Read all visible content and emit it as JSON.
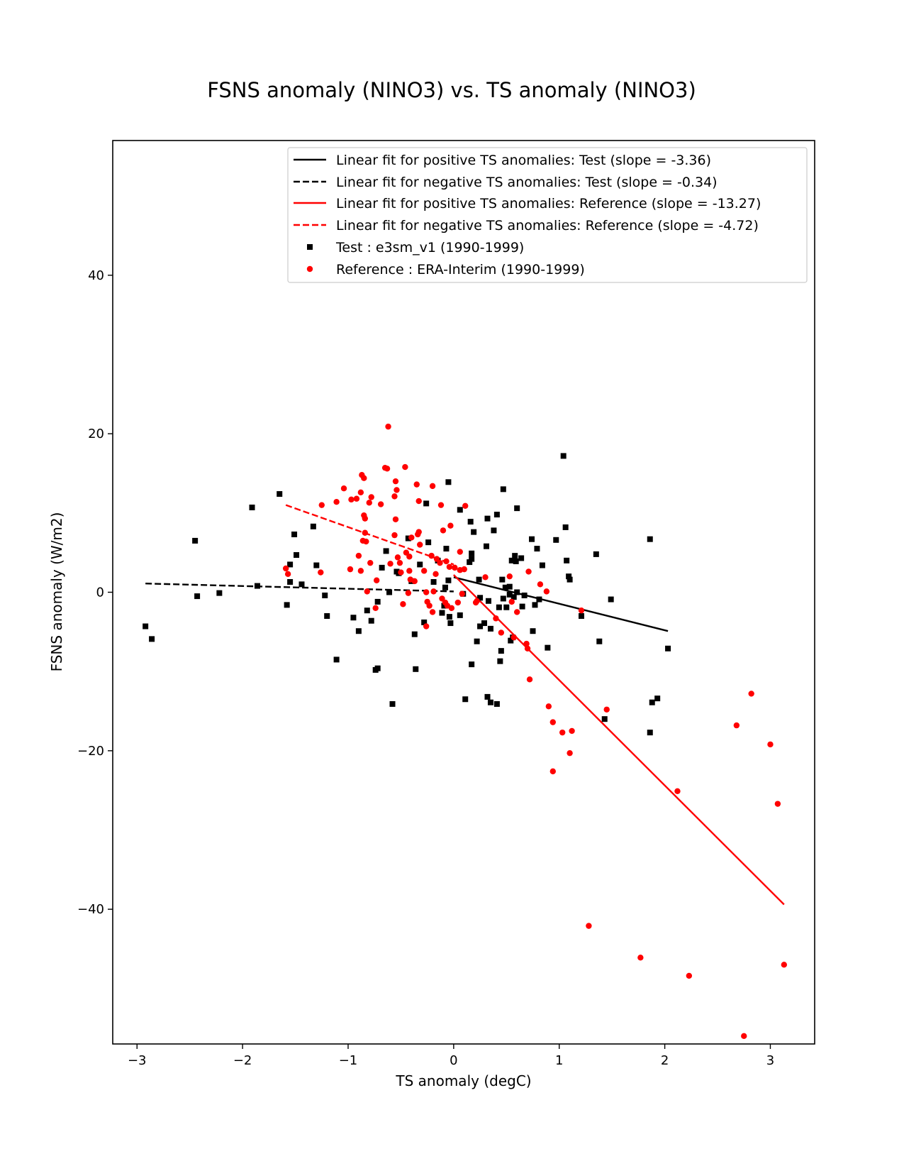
{
  "chart_data": {
    "type": "scatter",
    "title": "FSNS anomaly (NINO3) vs. TS anomaly (NINO3)",
    "xlabel": "TS anomaly (degC)",
    "ylabel": "FSNS anomaly (W/m2)",
    "xlim": [
      -3.23,
      3.42
    ],
    "ylim": [
      -57.0,
      57.0
    ],
    "xticks": [
      -3,
      -2,
      -1,
      0,
      1,
      2,
      3
    ],
    "xtick_labels": [
      "−3",
      "−2",
      "−1",
      "0",
      "1",
      "2",
      "3"
    ],
    "yticks": [
      -40,
      -20,
      0,
      20,
      40
    ],
    "ytick_labels": [
      "−40",
      "−20",
      "0",
      "20",
      "40"
    ],
    "grid": false,
    "legend_position": "top-right",
    "fit_lines": [
      {
        "name": "Linear fit for positive TS anomalies: Test (slope = -3.36)",
        "color": "#000000",
        "style": "solid",
        "x": [
          0.0,
          2.03
        ],
        "y": [
          1.9,
          -4.9
        ]
      },
      {
        "name": "Linear fit for negative TS anomalies: Test (slope = -0.34)",
        "color": "#000000",
        "style": "dashed",
        "x": [
          -2.92,
          0.0
        ],
        "y": [
          1.1,
          0.1
        ]
      },
      {
        "name": "Linear fit for positive TS anomalies: Reference (slope = -13.27)",
        "color": "#ff0000",
        "style": "solid",
        "x": [
          0.0,
          3.13
        ],
        "y": [
          2.2,
          -39.4
        ]
      },
      {
        "name": "Linear fit for negative TS anomalies: Reference (slope = -4.72)",
        "color": "#ff0000",
        "style": "dashed",
        "x": [
          -1.59,
          0.0
        ],
        "y": [
          11.0,
          3.5
        ]
      }
    ],
    "series": [
      {
        "name": "Test : e3sm_v1 (1990-1999)",
        "color": "#000000",
        "marker": "square",
        "points": [
          [
            -2.92,
            -4.3
          ],
          [
            -2.86,
            -5.9
          ],
          [
            -2.45,
            6.5
          ],
          [
            -2.43,
            -0.5
          ],
          [
            -2.22,
            -0.1
          ],
          [
            -1.91,
            10.7
          ],
          [
            -1.86,
            0.8
          ],
          [
            -1.65,
            12.4
          ],
          [
            -1.58,
            -1.6
          ],
          [
            -1.55,
            1.3
          ],
          [
            -1.55,
            3.5
          ],
          [
            -1.51,
            7.3
          ],
          [
            -1.49,
            4.7
          ],
          [
            -1.44,
            1.0
          ],
          [
            -1.33,
            8.3
          ],
          [
            -1.3,
            3.4
          ],
          [
            -1.22,
            -0.4
          ],
          [
            -1.2,
            -3.0
          ],
          [
            -1.11,
            -8.5
          ],
          [
            -0.95,
            -3.2
          ],
          [
            -0.9,
            -4.9
          ],
          [
            -0.82,
            -2.3
          ],
          [
            -0.78,
            -3.6
          ],
          [
            -0.74,
            -9.8
          ],
          [
            -0.72,
            -1.2
          ],
          [
            -0.72,
            -9.6
          ],
          [
            -0.68,
            3.1
          ],
          [
            -0.64,
            5.2
          ],
          [
            -0.61,
            0.0
          ],
          [
            -0.58,
            -14.1
          ],
          [
            -0.54,
            2.6
          ],
          [
            -0.52,
            2.4
          ],
          [
            -0.43,
            6.8
          ],
          [
            -0.4,
            1.4
          ],
          [
            -0.37,
            -5.3
          ],
          [
            -0.36,
            -9.7
          ],
          [
            -0.32,
            3.5
          ],
          [
            -0.28,
            -3.8
          ],
          [
            -0.26,
            11.2
          ],
          [
            -0.24,
            6.3
          ],
          [
            -0.19,
            1.3
          ],
          [
            -0.15,
            4.0
          ],
          [
            -0.11,
            -2.6
          ],
          [
            -0.09,
            -1.7
          ],
          [
            -0.08,
            0.6
          ],
          [
            -0.07,
            5.5
          ],
          [
            -0.05,
            13.9
          ],
          [
            -0.05,
            1.5
          ],
          [
            -0.04,
            -3.1
          ],
          [
            -0.03,
            -3.9
          ],
          [
            0.06,
            10.4
          ],
          [
            0.06,
            -2.9
          ],
          [
            0.09,
            -0.2
          ],
          [
            0.11,
            -13.5
          ],
          [
            0.15,
            3.8
          ],
          [
            0.16,
            8.9
          ],
          [
            0.17,
            4.9
          ],
          [
            0.17,
            4.2
          ],
          [
            0.17,
            -9.1
          ],
          [
            0.19,
            7.6
          ],
          [
            0.22,
            -6.2
          ],
          [
            0.24,
            1.6
          ],
          [
            0.25,
            -0.7
          ],
          [
            0.25,
            -4.3
          ],
          [
            0.29,
            -3.9
          ],
          [
            0.31,
            5.8
          ],
          [
            0.32,
            -13.2
          ],
          [
            0.32,
            9.3
          ],
          [
            0.33,
            -1.1
          ],
          [
            0.35,
            -13.9
          ],
          [
            0.35,
            -4.6
          ],
          [
            0.38,
            7.8
          ],
          [
            0.41,
            -14.1
          ],
          [
            0.41,
            9.8
          ],
          [
            0.43,
            -1.9
          ],
          [
            0.44,
            -8.7
          ],
          [
            0.45,
            -7.4
          ],
          [
            0.46,
            1.6
          ],
          [
            0.47,
            13.0
          ],
          [
            0.47,
            -0.8
          ],
          [
            0.49,
            0.6
          ],
          [
            0.5,
            -1.9
          ],
          [
            0.53,
            -0.3
          ],
          [
            0.53,
            0.7
          ],
          [
            0.54,
            -6.1
          ],
          [
            0.55,
            4.0
          ],
          [
            0.56,
            -5.7
          ],
          [
            0.57,
            -0.6
          ],
          [
            0.58,
            4.6
          ],
          [
            0.59,
            3.9
          ],
          [
            0.6,
            10.6
          ],
          [
            0.6,
            0.0
          ],
          [
            0.64,
            4.3
          ],
          [
            0.65,
            -1.8
          ],
          [
            0.67,
            -0.4
          ],
          [
            0.74,
            6.7
          ],
          [
            0.75,
            -4.9
          ],
          [
            0.77,
            -1.6
          ],
          [
            0.79,
            5.5
          ],
          [
            0.81,
            -0.9
          ],
          [
            0.84,
            3.4
          ],
          [
            0.89,
            -7.0
          ],
          [
            0.97,
            6.6
          ],
          [
            1.04,
            17.2
          ],
          [
            1.06,
            8.2
          ],
          [
            1.07,
            4.0
          ],
          [
            1.09,
            2.0
          ],
          [
            1.1,
            1.6
          ],
          [
            1.21,
            -3.0
          ],
          [
            1.35,
            4.8
          ],
          [
            1.38,
            -6.2
          ],
          [
            1.43,
            -16.0
          ],
          [
            1.49,
            -0.9
          ],
          [
            1.86,
            -17.7
          ],
          [
            1.86,
            6.7
          ],
          [
            1.88,
            -13.9
          ],
          [
            1.93,
            -13.4
          ],
          [
            2.03,
            -7.1
          ]
        ]
      },
      {
        "name": "Reference : ERA-Interim (1990-1999)",
        "color": "#ff0000",
        "marker": "circle",
        "points": [
          [
            -1.59,
            3.0
          ],
          [
            -1.57,
            2.3
          ],
          [
            -1.26,
            2.5
          ],
          [
            -1.25,
            11.0
          ],
          [
            -1.11,
            11.4
          ],
          [
            -1.04,
            13.1
          ],
          [
            -0.98,
            2.9
          ],
          [
            -0.97,
            11.7
          ],
          [
            -0.92,
            11.8
          ],
          [
            -0.9,
            4.6
          ],
          [
            -0.88,
            12.6
          ],
          [
            -0.88,
            2.7
          ],
          [
            -0.87,
            14.8
          ],
          [
            -0.86,
            6.5
          ],
          [
            -0.85,
            14.4
          ],
          [
            -0.85,
            9.7
          ],
          [
            -0.84,
            9.3
          ],
          [
            -0.84,
            7.5
          ],
          [
            -0.83,
            6.4
          ],
          [
            -0.82,
            0.1
          ],
          [
            -0.8,
            11.3
          ],
          [
            -0.79,
            3.7
          ],
          [
            -0.78,
            12.0
          ],
          [
            -0.74,
            -2.0
          ],
          [
            -0.73,
            1.5
          ],
          [
            -0.69,
            11.1
          ],
          [
            -0.65,
            15.7
          ],
          [
            -0.63,
            15.6
          ],
          [
            -0.62,
            20.9
          ],
          [
            -0.6,
            3.6
          ],
          [
            -0.56,
            7.2
          ],
          [
            -0.56,
            12.1
          ],
          [
            -0.55,
            14.0
          ],
          [
            -0.55,
            9.2
          ],
          [
            -0.54,
            12.9
          ],
          [
            -0.53,
            4.4
          ],
          [
            -0.51,
            3.7
          ],
          [
            -0.5,
            2.5
          ],
          [
            -0.48,
            -1.5
          ],
          [
            -0.46,
            15.8
          ],
          [
            -0.45,
            5.0
          ],
          [
            -0.43,
            -0.1
          ],
          [
            -0.42,
            4.5
          ],
          [
            -0.42,
            2.7
          ],
          [
            -0.41,
            1.6
          ],
          [
            -0.4,
            6.9
          ],
          [
            -0.37,
            1.4
          ],
          [
            -0.35,
            13.6
          ],
          [
            -0.34,
            7.3
          ],
          [
            -0.33,
            11.5
          ],
          [
            -0.33,
            7.6
          ],
          [
            -0.32,
            6.0
          ],
          [
            -0.28,
            2.7
          ],
          [
            -0.26,
            0.0
          ],
          [
            -0.26,
            -4.3
          ],
          [
            -0.25,
            -1.2
          ],
          [
            -0.23,
            -1.7
          ],
          [
            -0.21,
            4.6
          ],
          [
            -0.2,
            13.4
          ],
          [
            -0.2,
            -2.5
          ],
          [
            -0.19,
            0.1
          ],
          [
            -0.17,
            2.3
          ],
          [
            -0.16,
            4.2
          ],
          [
            -0.13,
            3.7
          ],
          [
            -0.12,
            11.0
          ],
          [
            -0.11,
            -0.8
          ],
          [
            -0.1,
            7.8
          ],
          [
            -0.08,
            -1.3
          ],
          [
            -0.07,
            3.9
          ],
          [
            -0.06,
            -1.7
          ],
          [
            -0.04,
            3.2
          ],
          [
            -0.03,
            8.4
          ],
          [
            -0.02,
            -2.0
          ],
          [
            0.01,
            3.1
          ],
          [
            0.04,
            -1.3
          ],
          [
            0.06,
            2.8
          ],
          [
            0.06,
            5.1
          ],
          [
            0.08,
            -0.2
          ],
          [
            0.1,
            2.9
          ],
          [
            0.11,
            10.9
          ],
          [
            0.21,
            -1.3
          ],
          [
            0.22,
            -1.1
          ],
          [
            0.3,
            1.9
          ],
          [
            0.4,
            -3.3
          ],
          [
            0.45,
            -5.1
          ],
          [
            0.53,
            2.0
          ],
          [
            0.55,
            -1.2
          ],
          [
            0.57,
            -5.7
          ],
          [
            0.6,
            -2.5
          ],
          [
            0.69,
            -6.5
          ],
          [
            0.7,
            -7.1
          ],
          [
            0.71,
            2.6
          ],
          [
            0.72,
            -11.0
          ],
          [
            0.82,
            1.0
          ],
          [
            0.88,
            0.1
          ],
          [
            0.9,
            -14.4
          ],
          [
            0.94,
            -16.4
          ],
          [
            0.94,
            -22.6
          ],
          [
            1.03,
            -17.7
          ],
          [
            1.1,
            -20.3
          ],
          [
            1.12,
            -17.5
          ],
          [
            1.21,
            -2.3
          ],
          [
            1.28,
            -42.1
          ],
          [
            1.45,
            -14.8
          ],
          [
            1.77,
            -46.1
          ],
          [
            2.12,
            -25.1
          ],
          [
            2.23,
            -48.4
          ],
          [
            2.68,
            -16.8
          ],
          [
            2.75,
            -56.0
          ],
          [
            2.82,
            -12.8
          ],
          [
            3.0,
            -19.2
          ],
          [
            3.07,
            -26.7
          ],
          [
            3.13,
            -47.0
          ]
        ]
      }
    ]
  }
}
